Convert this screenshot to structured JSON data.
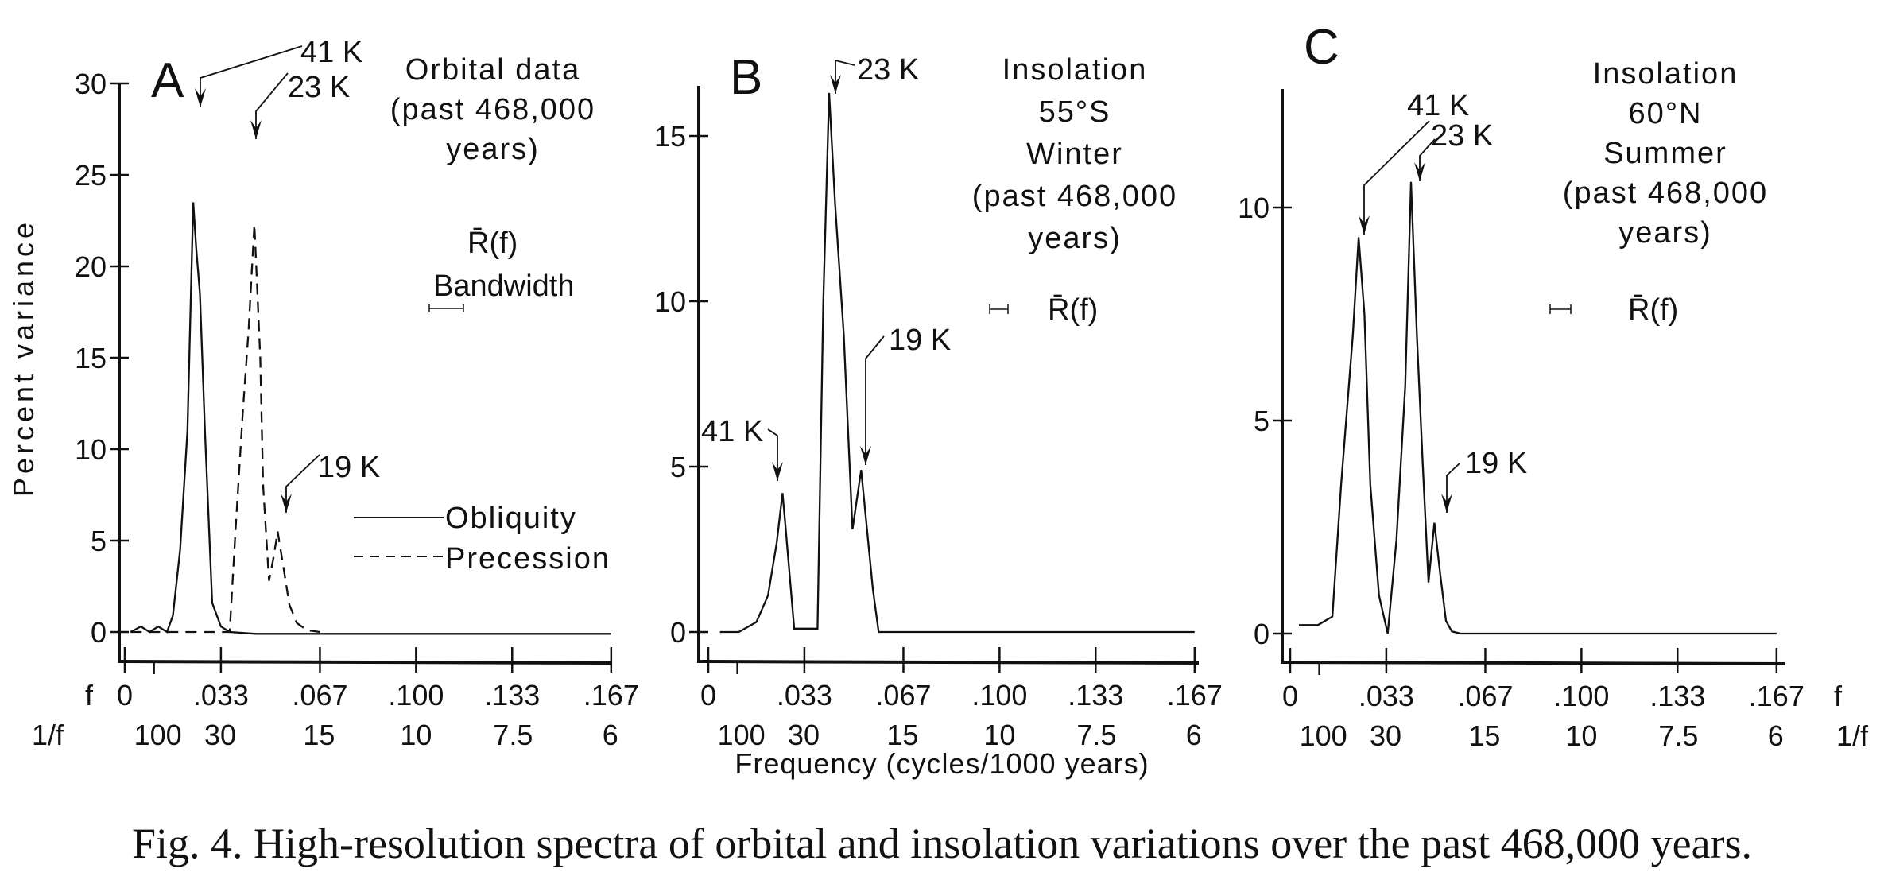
{
  "figure": {
    "caption": "Fig. 4. High-resolution spectra of orbital and insolation variations over the past 468,000 years.",
    "xlabel": "Frequency (cycles/1000 years)",
    "f_row_label": "f",
    "inv_f_row_label": "1/f"
  },
  "chart_data": [
    {
      "type": "line",
      "panel": "A",
      "title": [
        "Orbital data",
        "(past 468,000",
        "years)"
      ],
      "xlabel": "Frequency (cycles/1000 years)",
      "ylabel": "Percent variance",
      "xlim": [
        0,
        0.167
      ],
      "ylim": [
        0,
        30
      ],
      "yticks": [
        0,
        5,
        10,
        15,
        20,
        25,
        30
      ],
      "ytick_labels": [
        "0",
        "5",
        "10",
        "15",
        "20",
        "25",
        "30"
      ],
      "xticks": [
        0,
        0.033,
        0.067,
        0.1,
        0.133,
        0.167
      ],
      "xtick_labels": [
        "0",
        ".033",
        ".067",
        ".100",
        ".133",
        ".167"
      ],
      "inv_xtick_labels": [
        "100",
        "30",
        "15",
        "10",
        "7.5",
        "6"
      ],
      "inv_xtick_positions": [
        0.01,
        0.0333,
        0.0667,
        0.1,
        0.1333,
        0.1667
      ],
      "legend": [
        "Obliquity",
        "Precession"
      ],
      "legend_position": "right",
      "bandwidth_label": "Bandwidth",
      "rbar_label": "R̄(f)",
      "series": [
        {
          "name": "Obliquity",
          "style": "solid",
          "x": [
            0.002,
            0.0055,
            0.0085,
            0.0115,
            0.0145,
            0.0165,
            0.019,
            0.0215,
            0.0235,
            0.0245,
            0.0258,
            0.0275,
            0.03,
            0.033,
            0.036,
            0.045,
            0.06,
            0.08,
            0.1,
            0.12,
            0.14,
            0.167
          ],
          "y": [
            0.0,
            0.3,
            0.0,
            0.3,
            0.0,
            0.9,
            4.5,
            11.0,
            23.5,
            21.0,
            18.5,
            11.0,
            1.6,
            0.3,
            0.0,
            -0.1,
            -0.1,
            -0.1,
            -0.1,
            -0.1,
            -0.1,
            -0.1
          ]
        },
        {
          "name": "Precession",
          "style": "dashed",
          "x": [
            0.002,
            0.01,
            0.02,
            0.03,
            0.036,
            0.038,
            0.0405,
            0.0425,
            0.0445,
            0.0465,
            0.0475,
            0.0495,
            0.051,
            0.0525,
            0.0545,
            0.0565,
            0.059,
            0.0625,
            0.067
          ],
          "y": [
            0.0,
            0.0,
            0.0,
            0.0,
            0.0,
            5.5,
            12.0,
            16.5,
            22.3,
            15.0,
            8.0,
            2.8,
            4.0,
            5.5,
            3.5,
            1.5,
            0.5,
            0.1,
            0.0
          ]
        }
      ],
      "annotations": [
        {
          "text": "41 K",
          "target_x": 0.0235,
          "target_y": 23.5
        },
        {
          "text": "23 K",
          "target_x": 0.0445,
          "target_y": 22.3
        },
        {
          "text": "19 K",
          "target_x": 0.0525,
          "target_y": 5.5
        }
      ]
    },
    {
      "type": "line",
      "panel": "B",
      "title": [
        "Insolation",
        "55°S",
        "Winter",
        "(past 468,000",
        "years)"
      ],
      "xlabel": "Frequency (cycles/1000 years)",
      "ylabel": "Percent variance",
      "xlim": [
        0,
        0.167
      ],
      "ylim": [
        0,
        16.5
      ],
      "yticks": [
        0,
        5,
        10,
        15
      ],
      "ytick_labels": [
        "0",
        "5",
        "10",
        "15"
      ],
      "xticks": [
        0,
        0.033,
        0.067,
        0.1,
        0.133,
        0.167
      ],
      "xtick_labels": [
        "0",
        ".033",
        ".067",
        ".100",
        ".133",
        ".167"
      ],
      "inv_xtick_labels": [
        "100",
        "30",
        "15",
        "10",
        "7.5",
        "6"
      ],
      "inv_xtick_positions": [
        0.01,
        0.0333,
        0.0667,
        0.1,
        0.1333,
        0.1667
      ],
      "rbar_label": "R̄(f)",
      "series": [
        {
          "name": "Insolation 55°S Winter",
          "style": "solid",
          "x": [
            0.004,
            0.0105,
            0.0165,
            0.0205,
            0.0235,
            0.0255,
            0.0265,
            0.0295,
            0.0325,
            0.0335,
            0.0375,
            0.0395,
            0.0415,
            0.0435,
            0.0465,
            0.0495,
            0.0525,
            0.0565,
            0.0585,
            0.0605,
            0.08,
            0.1,
            0.12,
            0.14,
            0.167
          ],
          "y": [
            0.0,
            0.0,
            0.3,
            1.1,
            2.7,
            4.2,
            3.2,
            0.1,
            0.1,
            0.1,
            0.1,
            10.0,
            16.3,
            13.0,
            9.0,
            3.1,
            4.9,
            1.3,
            0.0,
            0.0,
            0.0,
            0.0,
            0.0,
            0.0,
            0.0
          ]
        }
      ],
      "annotations": [
        {
          "text": "23 K",
          "target_x": 0.0415,
          "target_y": 16.3
        },
        {
          "text": "41 K",
          "target_x": 0.0255,
          "target_y": 4.2
        },
        {
          "text": "19 K",
          "target_x": 0.0525,
          "target_y": 4.9
        }
      ]
    },
    {
      "type": "line",
      "panel": "C",
      "title": [
        "Insolation",
        "60°N",
        "Summer",
        "(past 468,000",
        "years)"
      ],
      "xlabel": "Frequency (cycles/1000 years)",
      "ylabel": "Percent variance",
      "xlim": [
        0,
        0.167
      ],
      "ylim": [
        0,
        12.5
      ],
      "yticks": [
        0,
        5,
        10
      ],
      "ytick_labels": [
        "0",
        "5",
        "10"
      ],
      "xticks": [
        0,
        0.033,
        0.067,
        0.1,
        0.133,
        0.167
      ],
      "xtick_labels": [
        "0",
        ".033",
        ".067",
        ".100",
        ".133",
        ".167"
      ],
      "inv_xtick_labels": [
        "100",
        "30",
        "15",
        "10",
        "7.5",
        "6"
      ],
      "inv_xtick_positions": [
        0.01,
        0.0333,
        0.0667,
        0.1,
        0.1333,
        0.1667
      ],
      "rbar_label": "R̄(f)",
      "series": [
        {
          "name": "Insolation 60°N Summer",
          "style": "solid",
          "x": [
            0.003,
            0.0095,
            0.0145,
            0.0175,
            0.0215,
            0.0235,
            0.0255,
            0.0275,
            0.0305,
            0.0335,
            0.0365,
            0.0395,
            0.0415,
            0.0435,
            0.0455,
            0.0475,
            0.0495,
            0.0515,
            0.0535,
            0.0555,
            0.0585,
            0.062,
            0.08,
            0.1,
            0.12,
            0.14,
            0.167
          ],
          "y": [
            0.2,
            0.2,
            0.4,
            3.5,
            7.0,
            9.3,
            7.5,
            3.5,
            0.9,
            0.0,
            2.2,
            5.8,
            10.6,
            7.0,
            4.0,
            1.2,
            2.6,
            1.4,
            0.3,
            0.05,
            0.0,
            0.0,
            0.0,
            0.0,
            0.0,
            0.0,
            0.0
          ]
        }
      ],
      "annotations": [
        {
          "text": "41 K",
          "target_x": 0.0235,
          "target_y": 9.3
        },
        {
          "text": "23 K",
          "target_x": 0.0415,
          "target_y": 10.6
        },
        {
          "text": "19 K",
          "target_x": 0.0495,
          "target_y": 2.6
        }
      ]
    }
  ]
}
